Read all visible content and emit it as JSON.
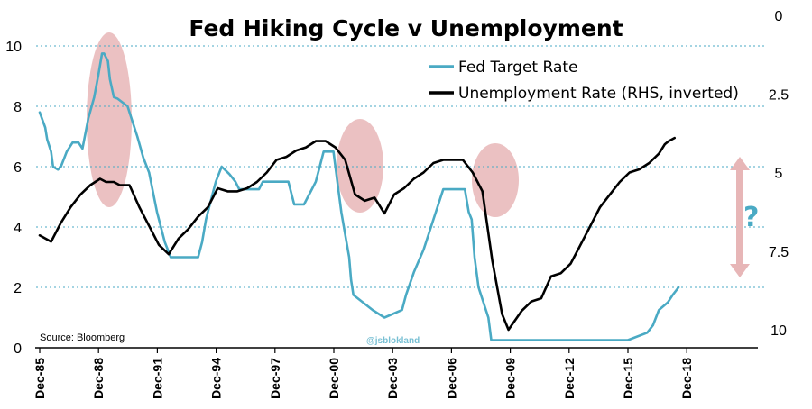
{
  "chart_data": {
    "type": "line",
    "title": "Fed Hiking Cycle v Unemployment",
    "source": "Source: Bloomberg",
    "watermark": "@jsblokland",
    "annotation": "?",
    "y_left": {
      "ticks": [
        "0",
        "2",
        "4",
        "6",
        "8",
        "10"
      ],
      "ylim": [
        0,
        10
      ]
    },
    "y_right": {
      "ticks": [
        "0",
        "2.5",
        "5",
        "7.5",
        "10"
      ],
      "ylim": [
        0,
        10
      ],
      "inverted": true
    },
    "x_ticks": [
      "Dec-85",
      "Dec-88",
      "Dec-91",
      "Dec-94",
      "Dec-97",
      "Dec-00",
      "Dec-03",
      "Dec-06",
      "Dec-09",
      "Dec-12",
      "Dec-15",
      "Dec-18"
    ],
    "grid": "horizontal-dashed",
    "legend": {
      "position": "top-right",
      "entries": [
        {
          "label": "Fed Target Rate",
          "color": "#4aaac4"
        },
        {
          "label": "Unemployment Rate (RHS, inverted)",
          "color": "#000000"
        }
      ]
    },
    "series": [
      {
        "name": "Fed Target Rate",
        "axis": "left",
        "color": "#4aaac4",
        "x": [
          1985.92,
          1986.2,
          1986.3,
          1986.5,
          1986.6,
          1986.85,
          1987.0,
          1987.3,
          1987.6,
          1987.9,
          1988.1,
          1988.4,
          1988.7,
          1988.9,
          1989.1,
          1989.2,
          1989.4,
          1989.5,
          1989.7,
          1989.9,
          1990.4,
          1990.6,
          1990.9,
          1991.2,
          1991.5,
          1991.9,
          1992.3,
          1992.6,
          1993.5,
          1994.0,
          1994.2,
          1994.4,
          1994.6,
          1994.9,
          1995.2,
          1995.6,
          1995.9,
          1996.1,
          1997.1,
          1997.3,
          1998.6,
          1998.8,
          1998.9,
          1999.4,
          1999.6,
          1999.8,
          2000.0,
          2000.2,
          2000.4,
          2000.9,
          2001.1,
          2001.3,
          2001.5,
          2001.7,
          2001.8,
          2001.92,
          2002.9,
          2003.5,
          2004.4,
          2004.6,
          2005.0,
          2005.5,
          2006.0,
          2006.5,
          2007.6,
          2007.8,
          2007.95,
          2008.1,
          2008.3,
          2008.8,
          2008.95,
          2015.9,
          2016.9,
          2017.2,
          2017.5,
          2017.95,
          2018.2,
          2018.5
        ],
        "values": [
          7.8,
          7.3,
          6.9,
          6.5,
          6.0,
          5.9,
          6.0,
          6.5,
          6.8,
          6.8,
          6.6,
          7.6,
          8.3,
          9.0,
          9.75,
          9.75,
          9.5,
          8.9,
          8.3,
          8.25,
          8.0,
          7.6,
          7.0,
          6.3,
          5.8,
          4.5,
          3.5,
          3.0,
          3.0,
          3.0,
          3.5,
          4.25,
          4.75,
          5.5,
          6.0,
          5.75,
          5.5,
          5.25,
          5.25,
          5.5,
          5.5,
          5.0,
          4.75,
          4.75,
          5.0,
          5.25,
          5.5,
          6.0,
          6.5,
          6.5,
          5.5,
          4.5,
          3.75,
          3.0,
          2.25,
          1.75,
          1.25,
          1.0,
          1.25,
          1.75,
          2.5,
          3.25,
          4.25,
          5.25,
          5.25,
          4.5,
          4.25,
          3.0,
          2.0,
          1.0,
          0.25,
          0.25,
          0.5,
          0.75,
          1.25,
          1.5,
          1.75,
          2.0
        ]
      },
      {
        "name": "Unemployment Rate (RHS, inverted)",
        "axis": "right",
        "color": "#000000",
        "x": [
          1985.92,
          1986.5,
          1987.0,
          1987.5,
          1988.0,
          1988.5,
          1989.0,
          1989.3,
          1989.7,
          1990.0,
          1990.5,
          1991.0,
          1991.5,
          1992.0,
          1992.5,
          1993.0,
          1993.5,
          1994.0,
          1994.5,
          1995.0,
          1995.5,
          1996.0,
          1996.5,
          1997.0,
          1997.5,
          1998.0,
          1998.5,
          1999.0,
          1999.5,
          2000.0,
          2000.5,
          2001.0,
          2001.5,
          2002.0,
          2002.5,
          2003.0,
          2003.5,
          2004.0,
          2004.5,
          2005.0,
          2005.5,
          2006.0,
          2006.5,
          2007.0,
          2007.5,
          2008.0,
          2008.5,
          2009.0,
          2009.5,
          2009.83,
          2010.5,
          2011.0,
          2011.5,
          2012.0,
          2012.5,
          2013.0,
          2013.5,
          2014.0,
          2014.5,
          2015.0,
          2015.5,
          2016.0,
          2016.5,
          2017.0,
          2017.5,
          2017.8,
          2018.0,
          2018.3
        ],
        "values": [
          7.0,
          7.2,
          6.6,
          6.1,
          5.7,
          5.4,
          5.2,
          5.3,
          5.3,
          5.4,
          5.4,
          6.1,
          6.7,
          7.3,
          7.6,
          7.1,
          6.8,
          6.4,
          6.1,
          5.5,
          5.6,
          5.6,
          5.5,
          5.3,
          5.0,
          4.6,
          4.5,
          4.3,
          4.2,
          4.0,
          4.0,
          4.2,
          4.6,
          5.7,
          5.9,
          5.8,
          6.3,
          5.7,
          5.5,
          5.2,
          5.0,
          4.7,
          4.6,
          4.6,
          4.6,
          5.0,
          5.6,
          7.8,
          9.5,
          10.0,
          9.4,
          9.1,
          9.0,
          8.3,
          8.2,
          7.9,
          7.3,
          6.7,
          6.1,
          5.7,
          5.3,
          5.0,
          4.9,
          4.7,
          4.4,
          4.1,
          4.0,
          3.9
        ]
      }
    ]
  }
}
